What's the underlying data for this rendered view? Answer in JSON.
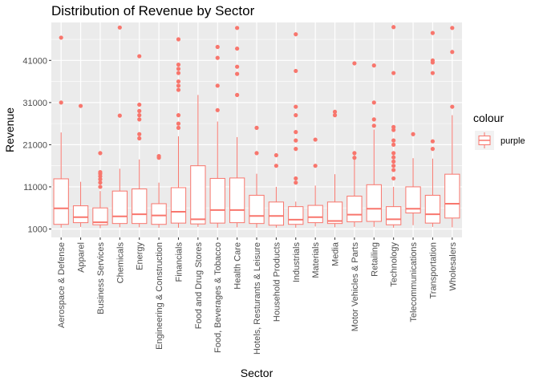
{
  "chart_data": {
    "type": "boxplot",
    "title": "Distribution of Revenue by Sector",
    "xlabel": "Sector",
    "ylabel": "Revenue",
    "ylim": [
      -1000,
      50000
    ],
    "yticks": [
      1000,
      11000,
      21000,
      31000,
      41000
    ],
    "grid": true,
    "legend": {
      "title": "colour",
      "entries": [
        "purple"
      ],
      "placement": "right"
    },
    "colors": {
      "series": "#f8766d",
      "panel_bg": "#ebebeb",
      "grid": "#ffffff"
    },
    "categories": [
      {
        "name": "Aerospace & Defense",
        "lower": 1300,
        "q1": 2100,
        "median": 5900,
        "q3": 12900,
        "upper": 23900,
        "outliers": [
          46400,
          31000
        ]
      },
      {
        "name": "Apparel",
        "lower": 1500,
        "q1": 2500,
        "median": 3800,
        "q3": 6500,
        "upper": 12200,
        "outliers": [
          30200
        ]
      },
      {
        "name": "Business Services",
        "lower": 1200,
        "q1": 2000,
        "median": 2600,
        "q3": 6000,
        "upper": 10000,
        "outliers": [
          19000,
          14500,
          14100,
          13500,
          12800,
          12000,
          11000
        ]
      },
      {
        "name": "Chemicals",
        "lower": 1400,
        "q1": 2300,
        "median": 4000,
        "q3": 10000,
        "upper": 15300,
        "outliers": [
          48800,
          27900
        ]
      },
      {
        "name": "Energy",
        "lower": 1400,
        "q1": 2300,
        "median": 4500,
        "q3": 10500,
        "upper": 17500,
        "outliers": [
          42000,
          30500,
          29000,
          28000,
          27000,
          23500,
          22500
        ]
      },
      {
        "name": "Engineering & Construction",
        "lower": 1300,
        "q1": 2100,
        "median": 4200,
        "q3": 7000,
        "upper": 12000,
        "outliers": [
          18300,
          17900
        ]
      },
      {
        "name": "Financials",
        "lower": 1300,
        "q1": 2400,
        "median": 5100,
        "q3": 10800,
        "upper": 23000,
        "outliers": [
          46000,
          40000,
          39000,
          38000,
          36000,
          35000,
          34000,
          28000,
          26000,
          25000
        ]
      },
      {
        "name": "Food and Drug Stores",
        "lower": 1500,
        "q1": 2200,
        "median": 3300,
        "q3": 16000,
        "upper": 32800,
        "outliers": []
      },
      {
        "name": "Food, Beverages & Tobacco",
        "lower": 1300,
        "q1": 2400,
        "median": 5500,
        "q3": 13000,
        "upper": 26500,
        "outliers": [
          44200,
          41600,
          35000,
          29200
        ]
      },
      {
        "name": "Health Care",
        "lower": 1400,
        "q1": 2500,
        "median": 5500,
        "q3": 13100,
        "upper": 22800,
        "outliers": [
          48700,
          43800,
          39500,
          37800,
          32800
        ]
      },
      {
        "name": "Hotels, Resturants & Leisure",
        "lower": 1300,
        "q1": 2300,
        "median": 4100,
        "q3": 9000,
        "upper": 14100,
        "outliers": [
          25000,
          19000
        ]
      },
      {
        "name": "Household Products",
        "lower": 1300,
        "q1": 1900,
        "median": 4100,
        "q3": 7400,
        "upper": 11000,
        "outliers": [
          18500,
          16000
        ]
      },
      {
        "name": "Industrials",
        "lower": 1300,
        "q1": 2100,
        "median": 3200,
        "q3": 6300,
        "upper": 7500,
        "outliers": [
          47200,
          38500,
          30000,
          28000,
          24000,
          22000,
          20000,
          13000,
          12000
        ]
      },
      {
        "name": "Materials",
        "lower": 1600,
        "q1": 2500,
        "median": 3800,
        "q3": 6600,
        "upper": 11300,
        "outliers": [
          22200,
          16000
        ]
      },
      {
        "name": "Media",
        "lower": 1400,
        "q1": 2300,
        "median": 2900,
        "q3": 7400,
        "upper": 14000,
        "outliers": [
          28800,
          28000
        ]
      },
      {
        "name": "Motor Vehicles & Parts",
        "lower": 1500,
        "q1": 2700,
        "median": 4400,
        "q3": 8800,
        "upper": 18500,
        "outliers": [
          40300,
          19000,
          17900
        ]
      },
      {
        "name": "Retailing",
        "lower": 1500,
        "q1": 2800,
        "median": 5800,
        "q3": 11500,
        "upper": 24600,
        "outliers": [
          39800,
          31000,
          27000,
          25500
        ]
      },
      {
        "name": "Technology",
        "lower": 1300,
        "q1": 2000,
        "median": 3300,
        "q3": 6300,
        "upper": 11000,
        "outliers": [
          48900,
          38000,
          25200,
          24500,
          22000,
          21000,
          19000,
          18000,
          17000,
          16000,
          15000,
          13000
        ]
      },
      {
        "name": "Telecommunications",
        "lower": 1900,
        "q1": 4800,
        "median": 5800,
        "q3": 11000,
        "upper": 17800,
        "outliers": [
          23500
        ]
      },
      {
        "name": "Transportation",
        "lower": 1500,
        "q1": 2400,
        "median": 4500,
        "q3": 9000,
        "upper": 17700,
        "outliers": [
          47500,
          41000,
          40500,
          38000,
          21800,
          20000
        ]
      },
      {
        "name": "Wholesalers",
        "lower": 1400,
        "q1": 3600,
        "median": 7000,
        "q3": 14000,
        "upper": 28000,
        "outliers": [
          48700,
          43000,
          30000
        ]
      }
    ]
  }
}
